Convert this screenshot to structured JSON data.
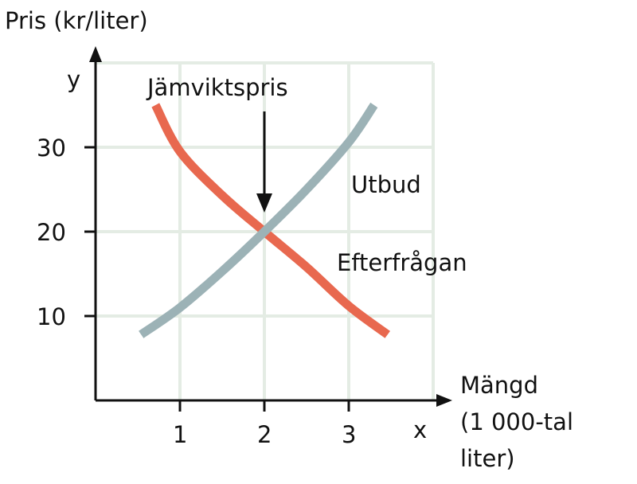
{
  "chart_data": {
    "type": "line",
    "ylabel": "Pris (kr/liter)",
    "yaxis_letter": "y",
    "xlabel_lines": [
      "Mängd",
      "(1 000-tal",
      "liter)"
    ],
    "xaxis_letter": "x",
    "xlim": [
      0,
      4
    ],
    "ylim": [
      0,
      40
    ],
    "xticks": [
      "1",
      "2",
      "3"
    ],
    "yticks": [
      "10",
      "20",
      "30"
    ],
    "grid": true,
    "series": [
      {
        "name": "Efterfrågan",
        "color": "#e8684f",
        "points": [
          [
            0.71,
            35
          ],
          [
            1,
            29.5
          ],
          [
            1.5,
            24.3
          ],
          [
            2,
            20
          ],
          [
            2.5,
            15.8
          ],
          [
            3,
            11.2
          ],
          [
            3.46,
            7.8
          ]
        ]
      },
      {
        "name": "Utbud",
        "color": "#9cb2b6",
        "points": [
          [
            0.54,
            7.8
          ],
          [
            1,
            11
          ],
          [
            1.5,
            15.3
          ],
          [
            2,
            20
          ],
          [
            2.5,
            25
          ],
          [
            3,
            30.6
          ],
          [
            3.3,
            35
          ]
        ]
      }
    ],
    "annotation": {
      "text": "Jämviktspris",
      "points_to": [
        2,
        20
      ]
    }
  }
}
